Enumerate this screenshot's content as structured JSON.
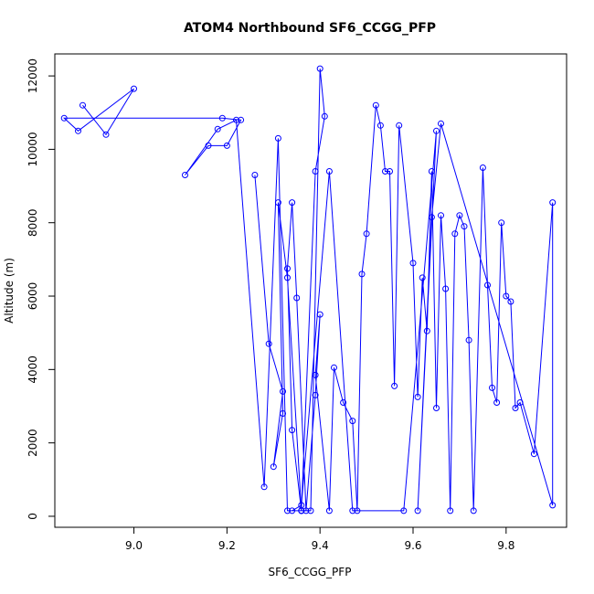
{
  "chart_data": {
    "type": "line",
    "title": "ATOM4 Northbound SF6_CCGG_PFP",
    "xlabel": "SF6_CCGG_PFP",
    "ylabel": "Altitude (m)",
    "xlim": [
      8.83,
      9.93
    ],
    "ylim": [
      -300,
      12600
    ],
    "xticks": [
      9.0,
      9.2,
      9.4,
      9.6,
      9.8
    ],
    "xtick_labels": [
      "9.0",
      "9.2",
      "9.4",
      "9.6",
      "9.8"
    ],
    "yticks": [
      0,
      2000,
      4000,
      6000,
      8000,
      10000,
      12000
    ],
    "ytick_labels": [
      "0",
      "2000",
      "4000",
      "6000",
      "8000",
      "10000",
      "12000"
    ],
    "grid": false,
    "series_color": "#0000ff",
    "series": [
      {
        "style": "lines+open-circles",
        "x": [
          9.26,
          9.29,
          9.32,
          9.3,
          9.32,
          9.31,
          9.33,
          9.36,
          9.34,
          9.33,
          9.34,
          9.35,
          9.37,
          9.39,
          9.4,
          9.39,
          9.42,
          9.43,
          9.45,
          9.47,
          9.48,
          9.49,
          9.5,
          9.52,
          9.53,
          9.54,
          9.55,
          9.56,
          9.57,
          9.6,
          9.61,
          9.62,
          9.63,
          9.64,
          9.65,
          9.66,
          9.67,
          9.68,
          9.69,
          9.7,
          9.71,
          9.72,
          9.73,
          9.75,
          9.76,
          9.77,
          9.78,
          9.79,
          9.8,
          9.81,
          9.82,
          9.83,
          9.86,
          9.9,
          9.9,
          9.66,
          9.64,
          9.61,
          9.65,
          9.58,
          9.47,
          9.42,
          9.36,
          9.34,
          9.36,
          9.39,
          9.41,
          9.4,
          9.38,
          9.36,
          9.33,
          9.31,
          9.28,
          9.22,
          9.18,
          9.11,
          9.16,
          9.2,
          9.23,
          9.19,
          8.85,
          8.88,
          9.0,
          8.94,
          8.89
        ],
        "y": [
          9300,
          4700,
          3400,
          1350,
          2800,
          8550,
          6500,
          150,
          2350,
          6750,
          8550,
          5950,
          150,
          3300,
          5500,
          3850,
          150,
          4050,
          3100,
          2600,
          150,
          6600,
          7700,
          11200,
          10650,
          9400,
          9400,
          3550,
          10650,
          6900,
          3250,
          6500,
          5050,
          9400,
          2950,
          8200,
          6200,
          150,
          7700,
          8200,
          7900,
          4800,
          150,
          9500,
          6300,
          3500,
          3100,
          8000,
          6000,
          5850,
          2950,
          3100,
          1700,
          8550,
          300,
          10700,
          8150,
          150,
          10500,
          150,
          150,
          9400,
          300,
          150,
          150,
          9400,
          10900,
          12200,
          150,
          150,
          150,
          10300,
          800,
          10800,
          10550,
          9300,
          10100,
          10100,
          10800,
          10850,
          10850,
          10500,
          11650,
          10400,
          11200
        ]
      }
    ]
  }
}
